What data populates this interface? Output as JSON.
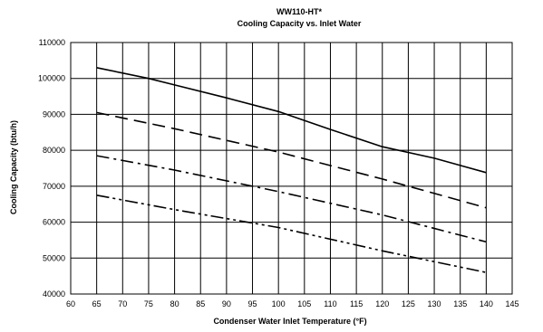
{
  "chart_data": {
    "type": "line",
    "title": "WW110-HT*",
    "subtitle": "Cooling Capacity vs. Inlet Water",
    "xlabel": "Condenser Water Inlet Temperature (°F)",
    "ylabel": "Cooling Capacity (btu/h)",
    "xlim": [
      60,
      145
    ],
    "ylim": [
      40000,
      110000
    ],
    "x_ticks": [
      60,
      65,
      70,
      75,
      80,
      85,
      90,
      95,
      100,
      105,
      110,
      115,
      120,
      125,
      130,
      135,
      140,
      145
    ],
    "y_ticks": [
      40000,
      50000,
      60000,
      70000,
      80000,
      90000,
      100000,
      110000
    ],
    "y_tick_labels": [
      "40000",
      "50000",
      "60000",
      "70000",
      "80000",
      "90000",
      "100000",
      "110000"
    ],
    "x_tick_labels": [
      "60",
      "65",
      "70",
      "75",
      "80",
      "85",
      "90",
      "95",
      "100",
      "105",
      "110",
      "115",
      "120",
      "125",
      "130",
      "135",
      "140",
      "145"
    ],
    "grid": true,
    "legend": "none",
    "series": [
      {
        "style": "solid",
        "color": "#000000",
        "x": [
          65,
          75,
          80,
          90,
          100,
          110,
          120,
          130,
          140
        ],
        "y": [
          103000,
          100000,
          98200,
          94600,
          90800,
          85800,
          81000,
          77800,
          73800
        ]
      },
      {
        "style": "dashed",
        "color": "#000000",
        "x": [
          65,
          80,
          100,
          120,
          140
        ],
        "y": [
          90500,
          86000,
          79500,
          72000,
          64000
        ]
      },
      {
        "style": "dash-dot",
        "color": "#000000",
        "x": [
          65,
          80,
          100,
          120,
          140
        ],
        "y": [
          78500,
          74500,
          68500,
          62000,
          54500
        ]
      },
      {
        "style": "dash-dot-dot",
        "color": "#000000",
        "x": [
          65,
          80,
          100,
          120,
          140
        ],
        "y": [
          67500,
          63500,
          58500,
          52000,
          46000
        ]
      }
    ]
  }
}
